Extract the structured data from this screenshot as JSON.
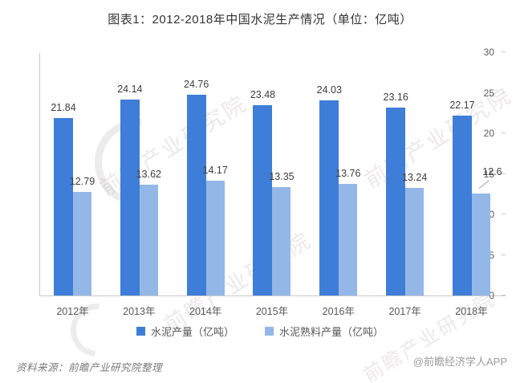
{
  "chart_data": {
    "type": "bar",
    "title": "图表1：2012-2018年中国水泥生产情况（单位：亿吨）",
    "categories": [
      "2012年",
      "2013年",
      "2014年",
      "2015年",
      "2016年",
      "2017年",
      "2018年"
    ],
    "series": [
      {
        "name": "水泥产量（亿吨）",
        "color": "#3E7DD8",
        "values": [
          21.84,
          24.14,
          24.76,
          23.48,
          24.03,
          23.16,
          22.17
        ]
      },
      {
        "name": "水泥熟料产量（亿吨）",
        "color": "#93B8E8",
        "values": [
          12.79,
          13.62,
          14.17,
          13.35,
          13.76,
          13.24,
          12.6
        ]
      }
    ],
    "xlabel": "",
    "ylabel": "",
    "ylim": [
      0,
      30
    ],
    "yticks": [
      0,
      5,
      10,
      15,
      20,
      25,
      30
    ],
    "grid": false,
    "legend_position": "bottom",
    "annotations": {
      "leader_line_label": "12.6"
    }
  },
  "footer": {
    "source": "资料来源：前瞻产业研究院整理",
    "credit": "@前瞻经济学人APP"
  },
  "watermark": {
    "text": "前瞻产业研究院"
  }
}
